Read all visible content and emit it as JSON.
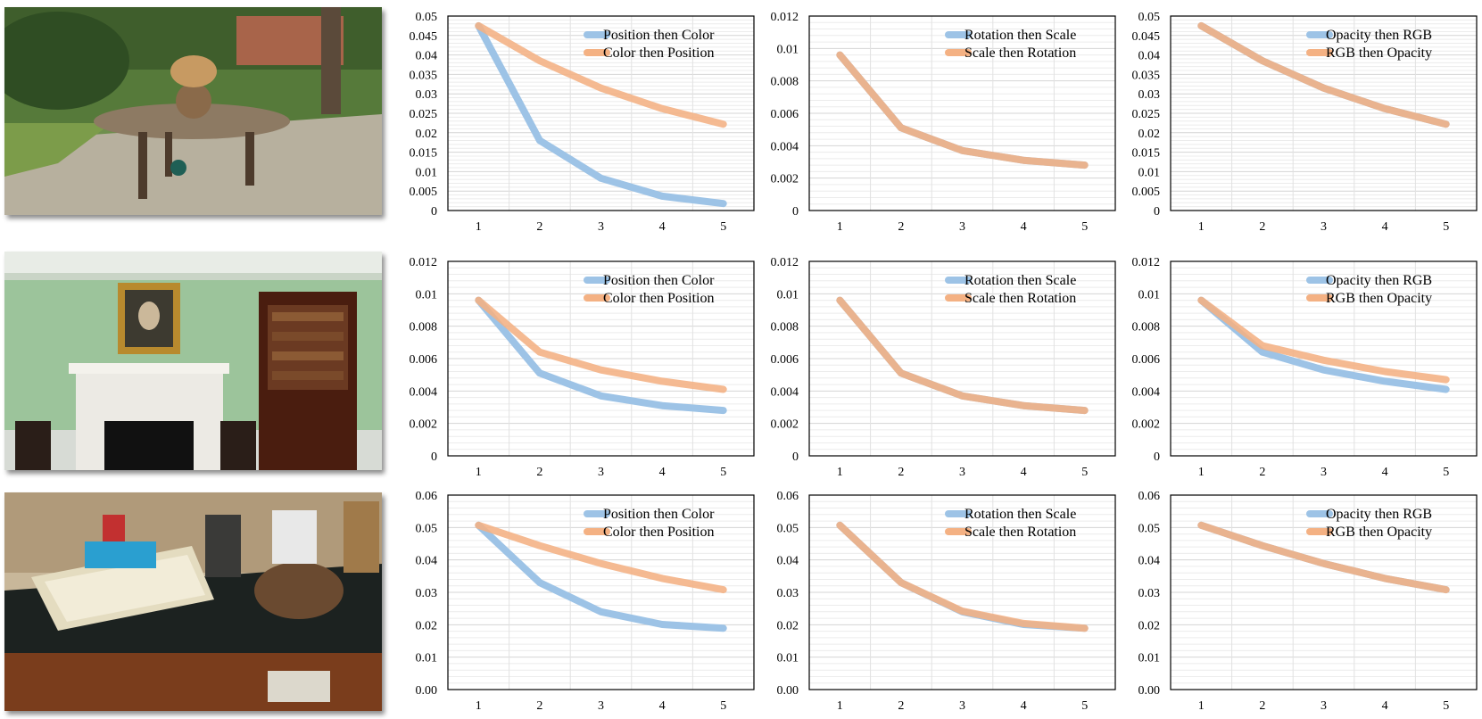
{
  "photos": [
    {
      "scene": "garden",
      "description": "outdoor garden with a round wooden table"
    },
    {
      "scene": "room",
      "description": "green room with fireplace, portrait and bookcase"
    },
    {
      "scene": "kitchen",
      "description": "kitchen counter with egg carton and bread"
    }
  ],
  "chart_data": [
    {
      "type": "line",
      "categories": [
        "1",
        "2",
        "3",
        "4",
        "5"
      ],
      "ylim": [
        0,
        0.05
      ],
      "yticks": [
        "0",
        "0.005",
        "0.01",
        "0.015",
        "0.02",
        "0.025",
        "0.03",
        "0.035",
        "0.04",
        "0.045",
        "0.05"
      ],
      "series": [
        {
          "name": "Position then Color",
          "color": "#9dc3e6",
          "values": [
            0.0475,
            0.018,
            0.0083,
            0.0037,
            0.0018
          ]
        },
        {
          "name": "Color then Position",
          "color": "#f4b183",
          "values": [
            0.0475,
            0.0385,
            0.0315,
            0.0262,
            0.0222
          ]
        }
      ]
    },
    {
      "type": "line",
      "categories": [
        "1",
        "2",
        "3",
        "4",
        "5"
      ],
      "ylim": [
        0,
        0.012
      ],
      "yticks": [
        "0",
        "0.002",
        "0.004",
        "0.006",
        "0.008",
        "0.01",
        "0.012"
      ],
      "series": [
        {
          "name": "Rotation then Scale",
          "color": "#9dc3e6",
          "values": [
            0.0096,
            0.0051,
            0.0037,
            0.0031,
            0.0028
          ]
        },
        {
          "name": "Scale then Rotation",
          "color": "#f4b183",
          "values": [
            0.0096,
            0.0051,
            0.0037,
            0.0031,
            0.0028
          ]
        }
      ]
    },
    {
      "type": "line",
      "categories": [
        "1",
        "2",
        "3",
        "4",
        "5"
      ],
      "ylim": [
        0,
        0.05
      ],
      "yticks": [
        "0",
        "0.005",
        "0.01",
        "0.015",
        "0.02",
        "0.025",
        "0.03",
        "0.035",
        "0.04",
        "0.045",
        "0.05"
      ],
      "series": [
        {
          "name": "Opacity then RGB",
          "color": "#9dc3e6",
          "values": [
            0.0475,
            0.0385,
            0.0315,
            0.0262,
            0.0222
          ]
        },
        {
          "name": "RGB then Opacity",
          "color": "#f4b183",
          "values": [
            0.0475,
            0.0385,
            0.0315,
            0.0262,
            0.0222
          ]
        }
      ]
    },
    {
      "type": "line",
      "categories": [
        "1",
        "2",
        "3",
        "4",
        "5"
      ],
      "ylim": [
        0,
        0.012
      ],
      "yticks": [
        "0",
        "0.002",
        "0.004",
        "0.006",
        "0.008",
        "0.01",
        "0.012"
      ],
      "series": [
        {
          "name": "Position then Color",
          "color": "#9dc3e6",
          "values": [
            0.0096,
            0.0051,
            0.0037,
            0.0031,
            0.0028
          ]
        },
        {
          "name": "Color then Position",
          "color": "#f4b183",
          "values": [
            0.0096,
            0.0064,
            0.0053,
            0.0046,
            0.0041
          ]
        }
      ]
    },
    {
      "type": "line",
      "categories": [
        "1",
        "2",
        "3",
        "4",
        "5"
      ],
      "ylim": [
        0,
        0.012
      ],
      "yticks": [
        "0",
        "0.002",
        "0.004",
        "0.006",
        "0.008",
        "0.01",
        "0.012"
      ],
      "series": [
        {
          "name": "Rotation then Scale",
          "color": "#9dc3e6",
          "values": [
            0.0096,
            0.0051,
            0.0037,
            0.0031,
            0.0028
          ]
        },
        {
          "name": "Scale then Rotation",
          "color": "#f4b183",
          "values": [
            0.0096,
            0.0051,
            0.0037,
            0.0031,
            0.0028
          ]
        }
      ]
    },
    {
      "type": "line",
      "categories": [
        "1",
        "2",
        "3",
        "4",
        "5"
      ],
      "ylim": [
        0,
        0.012
      ],
      "yticks": [
        "0",
        "0.002",
        "0.004",
        "0.006",
        "0.008",
        "0.01",
        "0.012"
      ],
      "series": [
        {
          "name": "Opacity then RGB",
          "color": "#9dc3e6",
          "values": [
            0.0096,
            0.0064,
            0.0053,
            0.0046,
            0.0041
          ]
        },
        {
          "name": "RGB then Opacity",
          "color": "#f4b183",
          "values": [
            0.0096,
            0.0068,
            0.0059,
            0.0052,
            0.0047
          ]
        }
      ]
    },
    {
      "type": "line",
      "categories": [
        "1",
        "2",
        "3",
        "4",
        "5"
      ],
      "ylim": [
        0,
        0.06
      ],
      "yticks": [
        "0.00",
        "0.01",
        "0.02",
        "0.03",
        "0.04",
        "0.05",
        "0.06"
      ],
      "series": [
        {
          "name": "Position then Color",
          "color": "#9dc3e6",
          "values": [
            0.0507,
            0.033,
            0.024,
            0.0201,
            0.0189
          ]
        },
        {
          "name": "Color then Position",
          "color": "#f4b183",
          "values": [
            0.0507,
            0.0444,
            0.0389,
            0.0343,
            0.0308
          ]
        }
      ]
    },
    {
      "type": "line",
      "categories": [
        "1",
        "2",
        "3",
        "4",
        "5"
      ],
      "ylim": [
        0,
        0.06
      ],
      "yticks": [
        "0.00",
        "0.01",
        "0.02",
        "0.03",
        "0.04",
        "0.05",
        "0.06"
      ],
      "series": [
        {
          "name": "Rotation then Scale",
          "color": "#9dc3e6",
          "values": [
            0.0507,
            0.033,
            0.024,
            0.0201,
            0.0189
          ]
        },
        {
          "name": "Scale then Rotation",
          "color": "#f4b183",
          "values": [
            0.0507,
            0.033,
            0.0242,
            0.0204,
            0.0189
          ]
        }
      ]
    },
    {
      "type": "line",
      "categories": [
        "1",
        "2",
        "3",
        "4",
        "5"
      ],
      "ylim": [
        0,
        0.06
      ],
      "yticks": [
        "0.00",
        "0.01",
        "0.02",
        "0.03",
        "0.04",
        "0.05",
        "0.06"
      ],
      "series": [
        {
          "name": "Opacity then RGB",
          "color": "#9dc3e6",
          "values": [
            0.0507,
            0.0444,
            0.0389,
            0.0343,
            0.0308
          ]
        },
        {
          "name": "RGB then Opacity",
          "color": "#f4b183",
          "values": [
            0.0507,
            0.0444,
            0.0389,
            0.0343,
            0.0308
          ]
        }
      ]
    }
  ]
}
